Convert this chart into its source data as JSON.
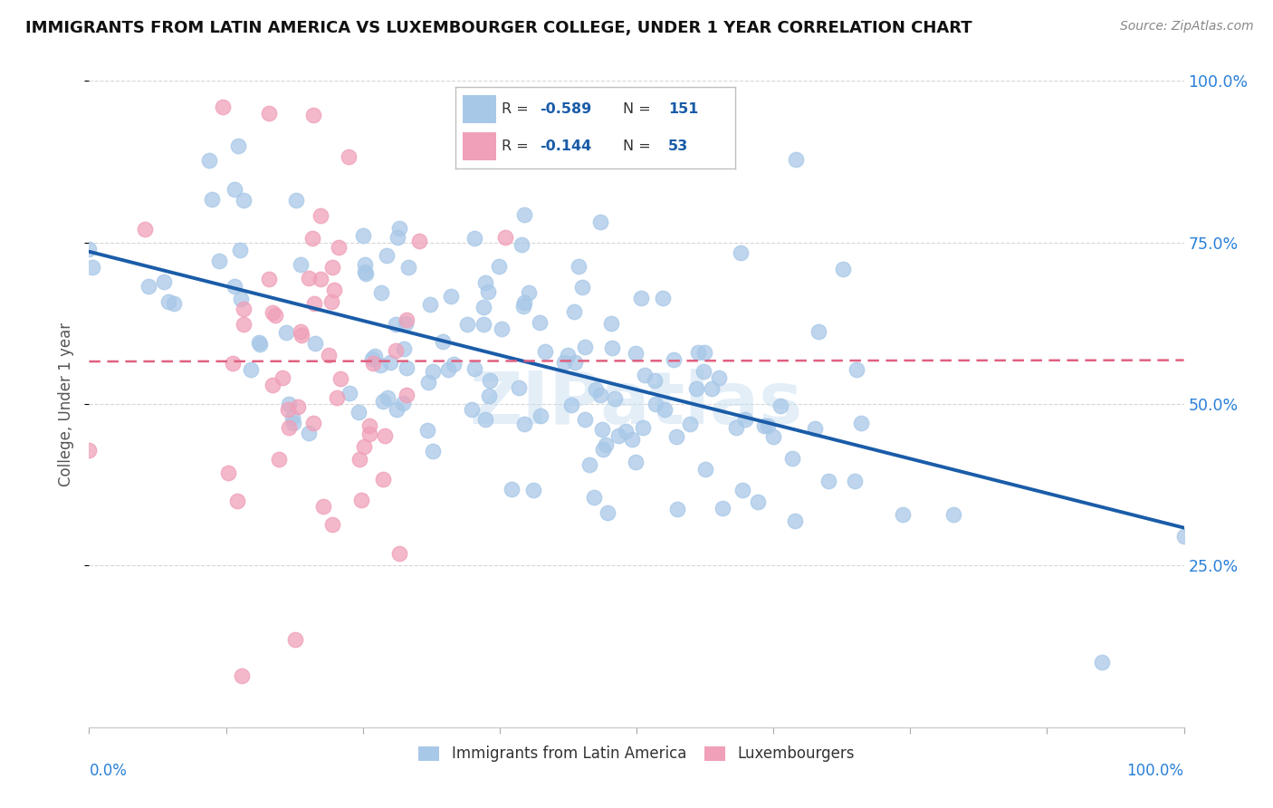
{
  "title": "IMMIGRANTS FROM LATIN AMERICA VS LUXEMBOURGER COLLEGE, UNDER 1 YEAR CORRELATION CHART",
  "source": "Source: ZipAtlas.com",
  "ylabel": "College, Under 1 year",
  "watermark": "ZIPatlas",
  "series": [
    {
      "name": "Immigrants from Latin America",
      "R": -0.589,
      "N": 151,
      "color": "#a8c8e8",
      "line_color": "#1a5ca8",
      "seed": 42
    },
    {
      "name": "Luxembourgers",
      "R": -0.144,
      "N": 53,
      "color": "#f0a0b8",
      "line_color": "#e06080",
      "seed": 17
    }
  ],
  "right_yticks": [
    "100.0%",
    "75.0%",
    "50.0%",
    "25.0%"
  ],
  "right_ytick_vals": [
    1.0,
    0.75,
    0.5,
    0.25
  ],
  "xlim": [
    0.0,
    1.0
  ],
  "ylim": [
    0.0,
    1.0
  ],
  "background_color": "#ffffff",
  "grid_color": "#cccccc",
  "legend_R_color": "#1a5ca8",
  "legend_N_color": "#1a5ca8"
}
